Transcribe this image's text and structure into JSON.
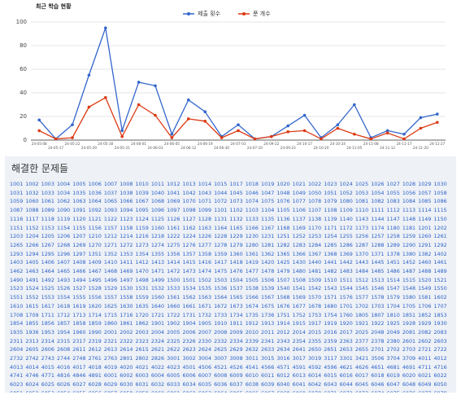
{
  "chart_data": {
    "type": "line",
    "title": "최근 학습 현황",
    "categories": [
      "24-05-08",
      "24-05-17",
      "24-05-22",
      "24-05-29",
      "24-05-30",
      "24-05-31",
      "24-06-01",
      "24-06-03",
      "24-06-05",
      "24-06-12",
      "24-06-19",
      "24-06-30",
      "24-07-03",
      "24-07-10",
      "24-09-22",
      "24-09-23",
      "24-10-17",
      "24-10-20",
      "24-10-24",
      "24-11-05",
      "24-11-08",
      "24-11-12",
      "24-11-17",
      "24-11-20",
      "24-11-27"
    ],
    "series": [
      {
        "name": "제출 횟수",
        "color": "#3366cc",
        "values": [
          17,
          1,
          13,
          55,
          95,
          8,
          49,
          46,
          5,
          34,
          24,
          3,
          13,
          1,
          3,
          12,
          21,
          2,
          13,
          30,
          2,
          8,
          5,
          19,
          22
        ]
      },
      {
        "name": "푼 개수",
        "color": "#dc3912",
        "values": [
          8,
          1,
          2,
          28,
          36,
          3,
          30,
          21,
          2,
          18,
          16,
          2,
          8,
          1,
          3,
          7,
          8,
          1,
          10,
          5,
          1,
          6,
          1,
          10,
          15
        ]
      }
    ],
    "ylim": [
      0,
      100
    ],
    "yticks": [
      0,
      20,
      40,
      60,
      80,
      100
    ],
    "grid": true,
    "legend": "top"
  },
  "solved": {
    "title": "해결한 문제들",
    "problems": [
      1001,
      1002,
      1003,
      1004,
      1005,
      1006,
      1007,
      1008,
      1010,
      1011,
      1012,
      1013,
      1014,
      1015,
      1017,
      1018,
      1019,
      1020,
      1021,
      1022,
      1023,
      1024,
      1025,
      1026,
      1027,
      1028,
      1029,
      1030,
      1031,
      1032,
      1033,
      1034,
      1035,
      1036,
      1037,
      1038,
      1039,
      1040,
      1041,
      1042,
      1043,
      1044,
      1045,
      1046,
      1047,
      1048,
      1049,
      1050,
      1051,
      1052,
      1053,
      1054,
      1055,
      1056,
      1057,
      1058,
      1059,
      1060,
      1061,
      1062,
      1063,
      1064,
      1065,
      1066,
      1067,
      1068,
      1069,
      1070,
      1071,
      1072,
      1073,
      1074,
      1075,
      1076,
      1077,
      1078,
      1079,
      1080,
      1081,
      1082,
      1083,
      1084,
      1085,
      1086,
      1087,
      1088,
      1089,
      1090,
      1091,
      1092,
      1093,
      1094,
      1095,
      1096,
      1097,
      1098,
      1099,
      1101,
      1102,
      1103,
      1104,
      1105,
      1106,
      1107,
      1108,
      1109,
      1110,
      1111,
      1112,
      1113,
      1114,
      1115,
      1116,
      1117,
      1118,
      1119,
      1120,
      1121,
      1122,
      1123,
      1124,
      1125,
      1126,
      1127,
      1128,
      1131,
      1132,
      1133,
      1135,
      1136,
      1137,
      1138,
      1139,
      1140,
      1143,
      1144,
      1147,
      1148,
      1149,
      1150,
      1151,
      1152,
      1153,
      1154,
      1155,
      1156,
      1157,
      1158,
      1159,
      1160,
      1161,
      1162,
      1163,
      1164,
      1165,
      1166,
      1167,
      1168,
      1169,
      1170,
      1171,
      1172,
      1173,
      1174,
      1180,
      1181,
      1201,
      1202,
      1203,
      1204,
      1205,
      1206,
      1207,
      1210,
      1212,
      1214,
      1216,
      1218,
      1222,
      1224,
      1226,
      1228,
      1229,
      1230,
      1231,
      1251,
      1252,
      1253,
      1254,
      1255,
      1256,
      1257,
      1258,
      1259,
      1260,
      1261,
      1265,
      1266,
      1267,
      1268,
      1269,
      1270,
      1271,
      1272,
      1273,
      1274,
      1275,
      1276,
      1277,
      1278,
      1279,
      1280,
      1281,
      1282,
      1283,
      1284,
      1285,
      1286,
      1287,
      1288,
      1289,
      1290,
      1291,
      1292,
      1293,
      1294,
      1295,
      1296,
      1297,
      1351,
      1352,
      1353,
      1354,
      1355,
      1356,
      1357,
      1358,
      1359,
      1360,
      1361,
      1362,
      1365,
      1366,
      1367,
      1368,
      1369,
      1370,
      1371,
      1378,
      1380,
      1382,
      1402,
      1403,
      1405,
      1406,
      1407,
      1408,
      1409,
      1410,
      1411,
      1412,
      1413,
      1414,
      1415,
      1416,
      1417,
      1418,
      1419,
      1420,
      1425,
      1430,
      1440,
      1441,
      1442,
      1443,
      1445,
      1451,
      1452,
      1460,
      1461,
      1462,
      1463,
      1464,
      1465,
      1466,
      1467,
      1468,
      1469,
      1470,
      1471,
      1472,
      1473,
      1474,
      1475,
      1476,
      1477,
      1478,
      1479,
      1480,
      1481,
      1482,
      1483,
      1484,
      1485,
      1486,
      1487,
      1488,
      1489,
      1490,
      1491,
      1492,
      1493,
      1494,
      1495,
      1496,
      1497,
      1498,
      1499,
      1500,
      1501,
      1502,
      1503,
      1504,
      1505,
      1506,
      1507,
      1508,
      1509,
      1510,
      1511,
      1512,
      1513,
      1514,
      1515,
      1520,
      1521,
      1523,
      1524,
      1525,
      1526,
      1527,
      1528,
      1529,
      1530,
      1531,
      1532,
      1533,
      1534,
      1535,
      1536,
      1537,
      1538,
      1539,
      1540,
      1541,
      1542,
      1543,
      1544,
      1545,
      1546,
      1547,
      1548,
      1549,
      1550,
      1551,
      1552,
      1553,
      1554,
      1555,
      1556,
      1557,
      1558,
      1559,
      1560,
      1561,
      1562,
      1563,
      1564,
      1565,
      1566,
      1567,
      1568,
      1569,
      1570,
      1571,
      1576,
      1577,
      1578,
      1579,
      1580,
      1581,
      1602,
      1610,
      1615,
      1617,
      1618,
      1619,
      1620,
      1625,
      1630,
      1635,
      1640,
      1660,
      1661,
      1671,
      1672,
      1673,
      1674,
      1675,
      1676,
      1677,
      1678,
      1680,
      1701,
      1702,
      1703,
      1704,
      1705,
      1706,
      1707,
      1708,
      1709,
      1711,
      1712,
      1713,
      1714,
      1715,
      1716,
      1720,
      1721,
      1722,
      1731,
      1732,
      1733,
      1734,
      1735,
      1736,
      1751,
      1752,
      1753,
      1754,
      1760,
      1805,
      1807,
      1810,
      1851,
      1852,
      1853,
      1854,
      1855,
      1856,
      1857,
      1858,
      1859,
      1860,
      1861,
      1862,
      1901,
      1902,
      1904,
      1905,
      1910,
      1911,
      1912,
      1913,
      1914,
      1915,
      1917,
      1919,
      1920,
      1921,
      1922,
      1925,
      1928,
      1929,
      1930,
      1935,
      1936,
      1953,
      1954,
      1960,
      1990,
      2001,
      2002,
      2003,
      2004,
      2005,
      2006,
      2007,
      2008,
      2009,
      2010,
      2011,
      2012,
      2014,
      2015,
      2016,
      2017,
      2025,
      2048,
      2049,
      2081,
      2082,
      2083,
      2311,
      2313,
      2314,
      2315,
      2317,
      2319,
      2321,
      2322,
      2323,
      2324,
      2325,
      2326,
      2330,
      2332,
      2334,
      2339,
      2341,
      2343,
      2354,
      2355,
      2359,
      2363,
      2377,
      2378,
      2380,
      2601,
      2602,
      2603,
      2604,
      2605,
      2606,
      2608,
      2611,
      2612,
      2613,
      2614,
      2615,
      2621,
      2622,
      2623,
      2624,
      2625,
      2629,
      2632,
      2633,
      2634,
      2641,
      2650,
      2651,
      2653,
      2655,
      2701,
      2702,
      2703,
      2721,
      2722,
      2732,
      2742,
      2743,
      2744,
      2748,
      2761,
      2763,
      2801,
      2802,
      2826,
      3001,
      3002,
      3004,
      3007,
      3008,
      3011,
      3015,
      3016,
      3017,
      3019,
      3117,
      3301,
      3421,
      3506,
      3704,
      3709,
      4011,
      4012,
      4013,
      4014,
      4015,
      4016,
      4017,
      4018,
      4019,
      4020,
      4021,
      4022,
      4023,
      4501,
      4506,
      4521,
      4526,
      4541,
      4566,
      4571,
      4591,
      4592,
      4596,
      4621,
      4626,
      4651,
      4681,
      4691,
      4711,
      4716,
      4741,
      4746,
      4771,
      4816,
      4846,
      4891,
      6001,
      6002,
      6003,
      6004,
      6005,
      6006,
      6007,
      6008,
      6009,
      6010,
      6011,
      6012,
      6013,
      6014,
      6015,
      6016,
      6017,
      6018,
      6019,
      6020,
      6021,
      6022,
      6023,
      6024,
      6025,
      6026,
      6027,
      6028,
      6029,
      6030,
      6031,
      6032,
      6033,
      6034,
      6035,
      6036,
      6037,
      6038,
      6039,
      6040,
      6041,
      6042,
      6043,
      6044,
      6045,
      6046,
      6047,
      6048,
      6049,
      6050,
      6051,
      6052,
      6053,
      6054,
      6055,
      6056,
      6057,
      6058,
      6059,
      6060,
      6061,
      6062,
      6063,
      6064,
      6065,
      6066,
      6067,
      6068,
      6069,
      6070,
      6071,
      6072,
      6073,
      6074,
      6075,
      6076,
      6077,
      6078,
      6079,
      6080,
      6081,
      6082,
      6083,
      6084,
      6085,
      6086,
      6087,
      6088,
      6089,
      6090,
      6091,
      6092,
      6093,
      6094,
      6095,
      6096,
      6097
    ]
  }
}
